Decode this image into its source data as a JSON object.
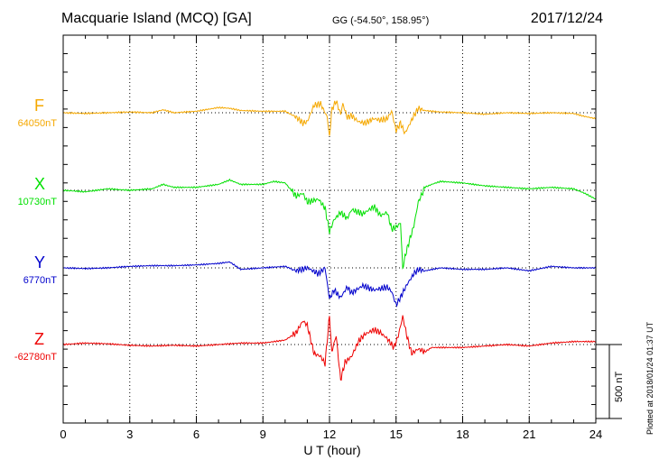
{
  "header": {
    "title": "Macquarie Island (MCQ)  [GA]",
    "coords": "GG (-54.50°, 158.95°)",
    "date": "2017/12/24"
  },
  "footer": {
    "plotted": "Plotted at 2018/01/24 01:37 UT",
    "scale_label": "500 nT"
  },
  "chart_data": {
    "type": "line",
    "title": "Macquarie Island (MCQ)  [GA]",
    "xlabel": "U T (hour)",
    "ylabel": "",
    "xlim": [
      0,
      24
    ],
    "xticks": [
      0,
      3,
      6,
      9,
      12,
      15,
      18,
      21,
      24
    ],
    "x_tick_labels": [
      "0",
      "3",
      "6",
      "9",
      "12",
      "15",
      "18",
      "21",
      "24"
    ],
    "grid": true,
    "scale_bar_nT": 500,
    "units": "nT",
    "series": [
      {
        "name": "F",
        "baseline_label": "64050nT",
        "baseline": 64050,
        "color": "#f5a800",
        "x": [
          0,
          1,
          2,
          3,
          4,
          4.5,
          5,
          6,
          7,
          7.5,
          8,
          9,
          10,
          10.5,
          10.8,
          11,
          11.3,
          11.6,
          11.9,
          12.0,
          12.1,
          12.3,
          12.5,
          12.6,
          12.8,
          13,
          13.3,
          13.6,
          14,
          14.3,
          14.6,
          14.8,
          15.0,
          15.2,
          15.4,
          15.6,
          15.8,
          16,
          16.3,
          16.6,
          17,
          18,
          19,
          20,
          21,
          22,
          23,
          23.5,
          24
        ],
        "values": [
          0,
          -5,
          0,
          5,
          0,
          20,
          0,
          10,
          35,
          30,
          15,
          10,
          10,
          -30,
          -70,
          -60,
          50,
          60,
          -30,
          -170,
          20,
          80,
          -10,
          60,
          -30,
          -20,
          -60,
          -70,
          -40,
          -50,
          -40,
          10,
          -120,
          -70,
          -140,
          -80,
          -20,
          30,
          15,
          10,
          5,
          0,
          -10,
          0,
          -5,
          0,
          -5,
          -25,
          -40
        ]
      },
      {
        "name": "X",
        "baseline_label": "10730nT",
        "baseline": 10730,
        "color": "#00e000",
        "x": [
          0,
          1,
          2,
          3,
          4,
          4.5,
          5,
          6,
          7,
          7.5,
          8,
          9,
          9.5,
          10,
          10.5,
          10.8,
          11,
          11.5,
          11.8,
          12.0,
          12.2,
          12.5,
          12.8,
          13,
          13.5,
          14,
          14.3,
          14.6,
          14.8,
          15.0,
          15.2,
          15.3,
          15.4,
          15.6,
          15.8,
          16,
          16.3,
          16.6,
          17,
          18,
          19,
          20,
          21,
          22,
          23,
          23.5,
          24
        ],
        "values": [
          0,
          -10,
          10,
          0,
          10,
          40,
          20,
          20,
          40,
          70,
          40,
          40,
          60,
          50,
          -40,
          -20,
          -80,
          -60,
          -120,
          -280,
          -200,
          -150,
          -190,
          -130,
          -160,
          -110,
          -170,
          -150,
          -260,
          -250,
          -220,
          -530,
          -450,
          -340,
          -240,
          -80,
          20,
          40,
          60,
          50,
          30,
          20,
          10,
          20,
          10,
          -20,
          -60
        ]
      },
      {
        "name": "Y",
        "baseline_label": "6770nT",
        "baseline": 6770,
        "color": "#0000cc",
        "x": [
          0,
          1,
          2,
          3,
          4,
          5,
          6,
          7,
          7.5,
          8,
          9,
          10,
          10.5,
          11,
          11.5,
          11.8,
          12.0,
          12.2,
          12.5,
          12.8,
          13,
          13.5,
          14,
          14.3,
          14.6,
          14.8,
          15.0,
          15.2,
          15.5,
          15.8,
          16,
          16.3,
          17,
          18,
          19,
          20,
          21,
          22,
          23,
          24
        ],
        "values": [
          0,
          -5,
          0,
          10,
          15,
          15,
          20,
          30,
          40,
          -10,
          0,
          10,
          -20,
          0,
          -40,
          0,
          -210,
          -150,
          -200,
          -130,
          -170,
          -120,
          -150,
          -140,
          -130,
          -160,
          -250,
          -200,
          -110,
          -40,
          -10,
          -20,
          0,
          -10,
          -10,
          0,
          -20,
          10,
          0,
          0
        ]
      },
      {
        "name": "Z",
        "baseline_label": "-62780nT",
        "baseline": -62780,
        "color": "#ee0000",
        "x": [
          0,
          1,
          2,
          3,
          4,
          5,
          6,
          7,
          8,
          9,
          10,
          10.5,
          10.8,
          11,
          11.3,
          11.6,
          11.8,
          12.0,
          12.1,
          12.3,
          12.5,
          12.7,
          13,
          13.3,
          13.6,
          14,
          14.3,
          14.6,
          14.9,
          15.1,
          15.3,
          15.5,
          15.7,
          16,
          16.3,
          16.6,
          17,
          18,
          19,
          20,
          21,
          22,
          23,
          24
        ],
        "values": [
          0,
          10,
          5,
          -5,
          -10,
          -5,
          -10,
          0,
          10,
          10,
          30,
          80,
          160,
          130,
          -60,
          -80,
          -130,
          200,
          -50,
          60,
          -240,
          -120,
          -80,
          20,
          70,
          100,
          80,
          40,
          -20,
          60,
          190,
          50,
          -60,
          -30,
          -50,
          -20,
          -20,
          -20,
          -10,
          0,
          -10,
          10,
          20,
          20
        ]
      }
    ]
  }
}
